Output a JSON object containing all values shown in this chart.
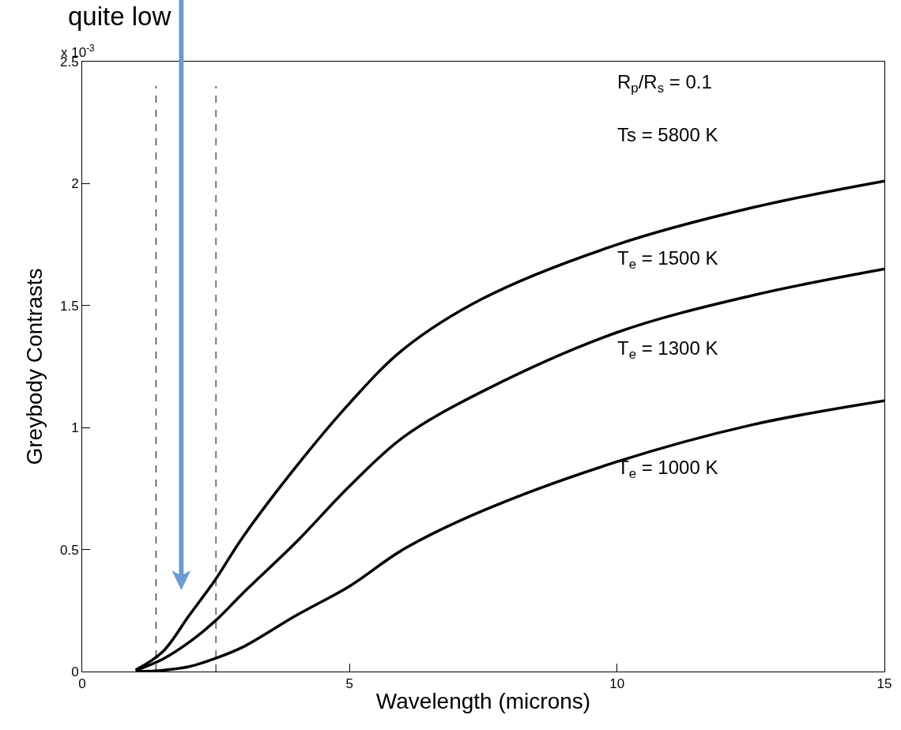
{
  "chart_data": {
    "type": "line",
    "xlabel": "Wavelength (microns)",
    "ylabel": "Greybody Contrasts",
    "x": [
      1,
      1.5,
      2,
      2.5,
      3,
      4,
      5,
      6,
      7.5,
      10,
      12.5,
      15
    ],
    "series": [
      {
        "color": "#000000",
        "values": [
          0.006,
          0.08,
          0.23,
          0.38,
          0.55,
          0.84,
          1.1,
          1.32,
          1.53,
          1.75,
          1.9,
          2.01
        ]
      },
      {
        "color": "#000000",
        "values": [
          0.004,
          0.05,
          0.12,
          0.21,
          0.32,
          0.53,
          0.76,
          0.96,
          1.15,
          1.39,
          1.54,
          1.65
        ]
      },
      {
        "color": "#000000",
        "values": [
          0.0,
          0.005,
          0.02,
          0.055,
          0.1,
          0.23,
          0.35,
          0.5,
          0.66,
          0.86,
          1.01,
          1.11
        ]
      }
    ],
    "xlim": [
      0,
      15
    ],
    "ylim": [
      0,
      2.5
    ],
    "xticks": [
      0,
      5,
      10,
      15
    ],
    "yticks": [
      0,
      0.5,
      1,
      1.5,
      2,
      2.5
    ],
    "marker": "none",
    "line_style": "solid",
    "ref_lines": [
      {
        "axis": "x",
        "value": 1.38,
        "color": "#000000",
        "line_style": "dashed"
      },
      {
        "axis": "x",
        "value": 2.5,
        "color": "#000000",
        "line_style": "dashed"
      }
    ],
    "annotations": [
      "x 10$^{-3}$",
      "R$_{p}$/R$_{s}$ = 0.1",
      "Ts = 5800 K",
      "T$_{e}$ = 1500 K",
      "T$_{e}$ = 1300 K",
      "T$_{e}$ = 1000 K",
      "quite low"
    ]
  }
}
